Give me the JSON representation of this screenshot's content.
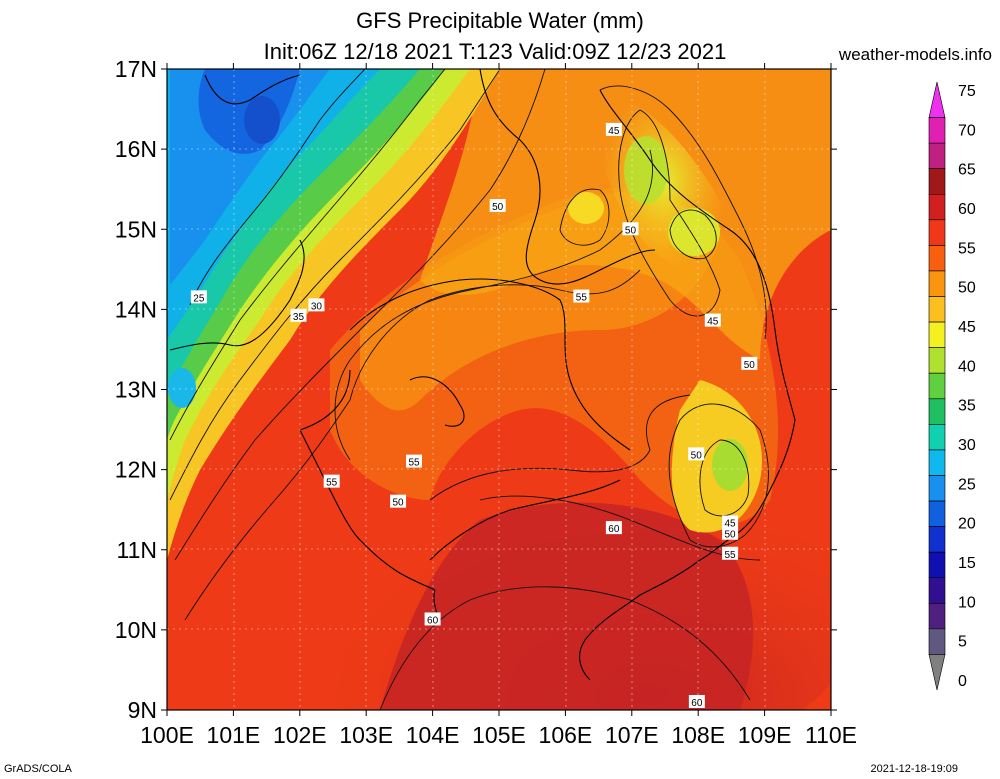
{
  "title_line1": "GFS Precipitable Water (mm)",
  "title_line2": "Init:06Z 12/18 2021 T:123 Valid:09Z 12/23 2021",
  "site": "weather-models.info",
  "footer_left": "GrADS/COLA",
  "footer_right": "2021-12-18-19:09",
  "y_axis_labels": [
    "17N",
    "16N",
    "15N",
    "14N",
    "13N",
    "12N",
    "11N",
    "10N",
    "9N"
  ],
  "x_axis_labels": [
    "100E",
    "101E",
    "102E",
    "103E",
    "104E",
    "105E",
    "106E",
    "107E",
    "108E",
    "109E",
    "110E"
  ],
  "colorbar": {
    "labels": [
      "75",
      "70",
      "65",
      "60",
      "55",
      "50",
      "45",
      "40",
      "35",
      "30",
      "25",
      "20",
      "15",
      "10",
      "5",
      "0"
    ],
    "colors": [
      "#f030f0",
      "#e020b0",
      "#c02080",
      "#a01818",
      "#d22020",
      "#f03818",
      "#f86010",
      "#fb9510",
      "#fbc020",
      "#f3f220",
      "#b0e030",
      "#60d040",
      "#20c060",
      "#10d0b0",
      "#10b8f0",
      "#1890f0",
      "#1060e0",
      "#1030d0",
      "#1010b0",
      "#301090",
      "#502080",
      "#605880",
      "#808080"
    ]
  },
  "contour_labels": [
    {
      "text": "45",
      "lon": 106.73,
      "lat": 16.24
    },
    {
      "text": "50",
      "lon": 104.98,
      "lat": 15.29
    },
    {
      "text": "50",
      "lon": 106.98,
      "lat": 15.0
    },
    {
      "text": "55",
      "lon": 106.24,
      "lat": 14.16
    },
    {
      "text": "25",
      "lon": 100.48,
      "lat": 14.15
    },
    {
      "text": "30",
      "lon": 102.25,
      "lat": 14.05
    },
    {
      "text": "35",
      "lon": 101.98,
      "lat": 13.92
    },
    {
      "text": "45",
      "lon": 108.22,
      "lat": 13.86
    },
    {
      "text": "50",
      "lon": 108.77,
      "lat": 13.32
    },
    {
      "text": "50",
      "lon": 107.97,
      "lat": 12.19
    },
    {
      "text": "55",
      "lon": 103.72,
      "lat": 12.1
    },
    {
      "text": "55",
      "lon": 102.48,
      "lat": 11.85
    },
    {
      "text": "50",
      "lon": 103.48,
      "lat": 11.6
    },
    {
      "text": "60",
      "lon": 106.73,
      "lat": 11.27
    },
    {
      "text": "45",
      "lon": 108.48,
      "lat": 11.34
    },
    {
      "text": "50",
      "lon": 108.48,
      "lat": 11.2
    },
    {
      "text": "55",
      "lon": 108.48,
      "lat": 10.95
    },
    {
      "text": "60",
      "lon": 104.0,
      "lat": 10.13
    },
    {
      "text": "60",
      "lon": 107.98,
      "lat": 9.1
    }
  ]
}
